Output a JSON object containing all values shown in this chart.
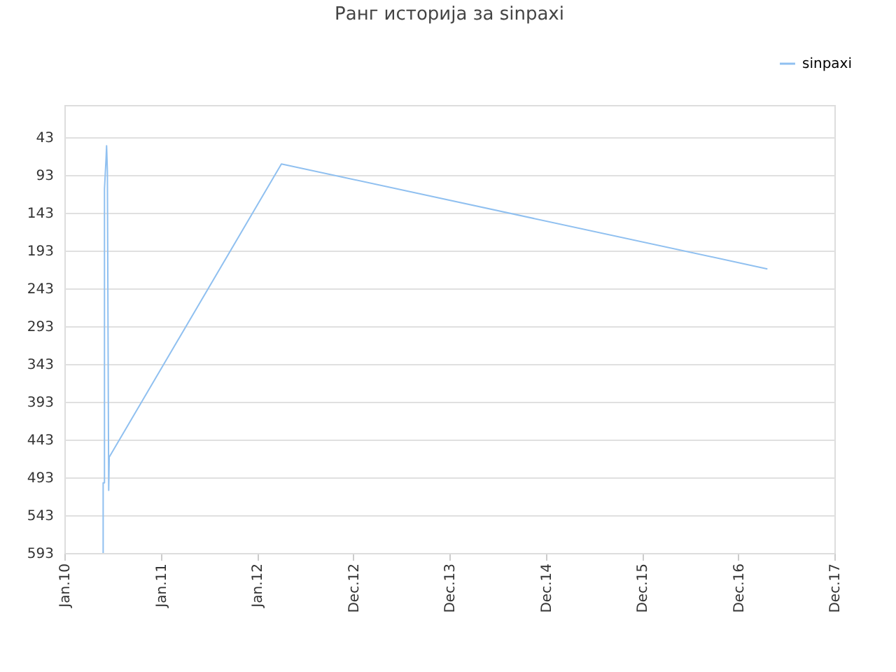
{
  "chart_data": {
    "type": "line",
    "title": "Ранг историја за sinpaxi",
    "x": [
      "2010-05-28",
      "2010-05-28",
      "2010-06-02",
      "2010-06-02",
      "2010-06-08",
      "2010-06-10",
      "2010-06-13",
      "2010-06-18",
      "2010-06-20",
      "2012-04-03",
      "2017-04-20"
    ],
    "series": [
      {
        "name": "sinpaxi",
        "color": "#90c0f0",
        "values": [
          593,
          500,
          500,
          111,
          71,
          54,
          87,
          510,
          466,
          78,
          217
        ]
      }
    ],
    "xlim": [
      "2010-01-01",
      "2017-12-30"
    ],
    "xticks": [
      {
        "value": "2010-01-01",
        "label": "Jan.10"
      },
      {
        "value": "2011-01-01",
        "label": "Jan.11"
      },
      {
        "value": "2012-01-01",
        "label": "Jan.12"
      },
      {
        "value": "2012-12-31",
        "label": "Dec.12"
      },
      {
        "value": "2013-12-31",
        "label": "Dec.13"
      },
      {
        "value": "2014-12-31",
        "label": "Dec.14"
      },
      {
        "value": "2015-12-31",
        "label": "Dec.15"
      },
      {
        "value": "2016-12-30",
        "label": "Dec.16"
      },
      {
        "value": "2017-12-30",
        "label": "Dec.17"
      }
    ],
    "ylim": [
      593,
      0
    ],
    "yticks": [
      43,
      93,
      143,
      193,
      243,
      293,
      343,
      393,
      443,
      493,
      543,
      593
    ],
    "grid": "y",
    "legend": "top right",
    "marker": "none",
    "line_style": "solid"
  }
}
